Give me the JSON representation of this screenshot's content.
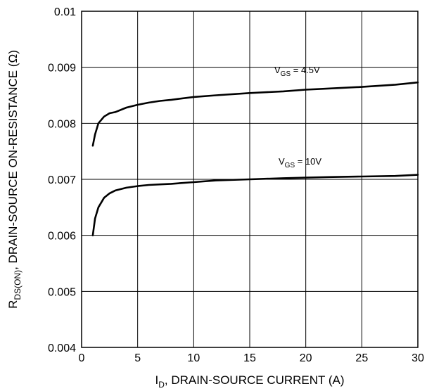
{
  "chart_data": {
    "type": "line",
    "xlabel": {
      "main": "I",
      "sub": "D",
      "rest": ", DRAIN-SOURCE CURRENT (A)"
    },
    "ylabel": {
      "main": "R",
      "sub": "DS(ON)",
      "rest": ", DRAIN-SOURCE ON-RESISTANCE (Ω)"
    },
    "xlim": [
      0,
      30
    ],
    "ylim": [
      0.004,
      0.01
    ],
    "xticks": [
      "0",
      "5",
      "10",
      "15",
      "20",
      "25",
      "30"
    ],
    "yticks": [
      "0.004",
      "0.005",
      "0.006",
      "0.007",
      "0.008",
      "0.009",
      "0.01"
    ],
    "grid": true,
    "series": [
      {
        "name": "V_GS = 4.5V",
        "label": {
          "main": "V",
          "sub": "GS",
          "rest": " = 4.5V"
        },
        "x": [
          1,
          1.2,
          1.5,
          2,
          2.5,
          3,
          4,
          5,
          6,
          7,
          8,
          10,
          12,
          15,
          18,
          20,
          22,
          25,
          28,
          30
        ],
        "y": [
          0.0076,
          0.0078,
          0.008,
          0.00812,
          0.00818,
          0.0082,
          0.00828,
          0.00833,
          0.00837,
          0.0084,
          0.00842,
          0.00847,
          0.0085,
          0.00854,
          0.00857,
          0.0086,
          0.00862,
          0.00865,
          0.00869,
          0.00873
        ]
      },
      {
        "name": "V_GS = 10V",
        "label": {
          "main": "V",
          "sub": "GS",
          "rest": " = 10V"
        },
        "x": [
          1,
          1.2,
          1.5,
          2,
          2.5,
          3,
          4,
          5,
          6,
          7,
          8,
          10,
          12,
          15,
          18,
          20,
          22,
          25,
          28,
          30
        ],
        "y": [
          0.006,
          0.0063,
          0.0065,
          0.00667,
          0.00675,
          0.0068,
          0.00685,
          0.00688,
          0.0069,
          0.00691,
          0.00692,
          0.00695,
          0.00698,
          0.007,
          0.00702,
          0.00703,
          0.00704,
          0.00705,
          0.00706,
          0.00708
        ]
      }
    ]
  }
}
